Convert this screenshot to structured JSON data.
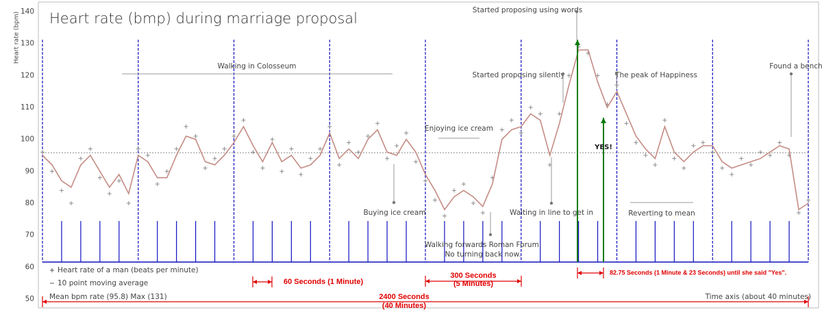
{
  "chart_data": {
    "type": "line",
    "title": "Heart rate (bmp) during marriage proposal",
    "y_label": "Heart rate (bpm)",
    "x_label": "Time axis (about 40 minutes)",
    "summary": "Mean bpm rate (95.8) Max (131)",
    "mean": 95.8,
    "xlim": [
      0,
      40
    ],
    "ylim": [
      50,
      140
    ],
    "yticks": [
      50,
      60,
      70,
      80,
      90,
      100,
      110,
      120,
      130,
      140
    ],
    "x": [
      0,
      0.5,
      1,
      1.5,
      2,
      2.5,
      3,
      3.5,
      4,
      4.5,
      5,
      5.5,
      6,
      6.5,
      7,
      7.5,
      8,
      8.5,
      9,
      9.5,
      10,
      10.5,
      11,
      11.5,
      12,
      12.5,
      13,
      13.5,
      14,
      14.5,
      15,
      15.5,
      16,
      16.5,
      17,
      17.5,
      18,
      18.5,
      19,
      19.5,
      20,
      20.5,
      21,
      21.5,
      22,
      22.5,
      23,
      23.5,
      24,
      24.5,
      25,
      25.5,
      26,
      26.5,
      27,
      27.5,
      28,
      28.5,
      29,
      29.5,
      30,
      30.5,
      31,
      31.5,
      32,
      32.5,
      33,
      33.5,
      34,
      34.5,
      35,
      35.5,
      36,
      36.5,
      37,
      37.5,
      38,
      38.5,
      39,
      39.5,
      40
    ],
    "series": [
      {
        "name": "Heart rate of a man (beats per minute)",
        "color": "#8c8c8c",
        "marker": "+",
        "values": [
          96,
          90,
          84,
          80,
          94,
          97,
          88,
          83,
          87,
          80,
          97,
          95,
          86,
          90,
          97,
          104,
          101,
          91,
          94,
          97,
          101,
          106,
          96,
          91,
          100,
          90,
          97,
          89,
          94,
          97,
          104,
          92,
          99,
          96,
          101,
          105,
          94,
          98,
          102,
          93,
          87,
          81,
          76,
          84,
          86,
          80,
          77,
          88,
          103,
          106,
          102,
          110,
          108,
          92,
          108,
          120,
          129,
          127,
          120,
          111,
          117,
          105,
          99,
          95,
          92,
          106,
          94,
          91,
          98,
          99,
          96,
          91,
          89,
          94,
          92,
          96,
          95,
          99,
          95,
          77,
          81
        ]
      },
      {
        "name": "10 point moving average",
        "color": "#c48b83",
        "values": [
          95,
          92,
          87,
          85,
          92,
          95,
          90,
          85,
          89,
          83,
          95,
          93,
          88,
          88,
          95,
          101,
          100,
          93,
          92,
          95,
          99,
          104,
          98,
          93,
          99,
          93,
          95,
          91,
          92,
          95,
          102,
          94,
          97,
          94,
          100,
          103,
          96,
          95,
          100,
          96,
          89,
          84,
          78,
          82,
          84,
          82,
          79,
          86,
          100,
          103,
          104,
          108,
          106,
          95,
          105,
          117,
          128,
          128,
          118,
          110,
          115,
          108,
          101,
          97,
          94,
          104,
          96,
          93,
          96,
          98,
          98,
          93,
          91,
          92,
          93,
          94,
          96,
          98,
          97,
          78,
          80
        ]
      }
    ],
    "annotations": [
      "Walking in Colosseum",
      "Started proposing using words",
      "Started proposing silently",
      "The peak of Happiness",
      "Found a bench",
      "Enjoying ice cream",
      "Buying ice cream",
      "Waiting in line to get in",
      "Reverting to mean",
      "Walking forwards Roman Forum.",
      "No turning back now."
    ],
    "yes_label": "YES!",
    "callouts": [
      [
        "60 Seconds (1 Minute)"
      ],
      [
        "300 Seconds",
        "(5 Minutes)"
      ],
      [
        "82.75 Seconds (1 Minute & 23 Seconds) until she said \"Yes\"."
      ],
      [
        "2400 Seconds",
        "(40 Minutes)"
      ]
    ]
  }
}
